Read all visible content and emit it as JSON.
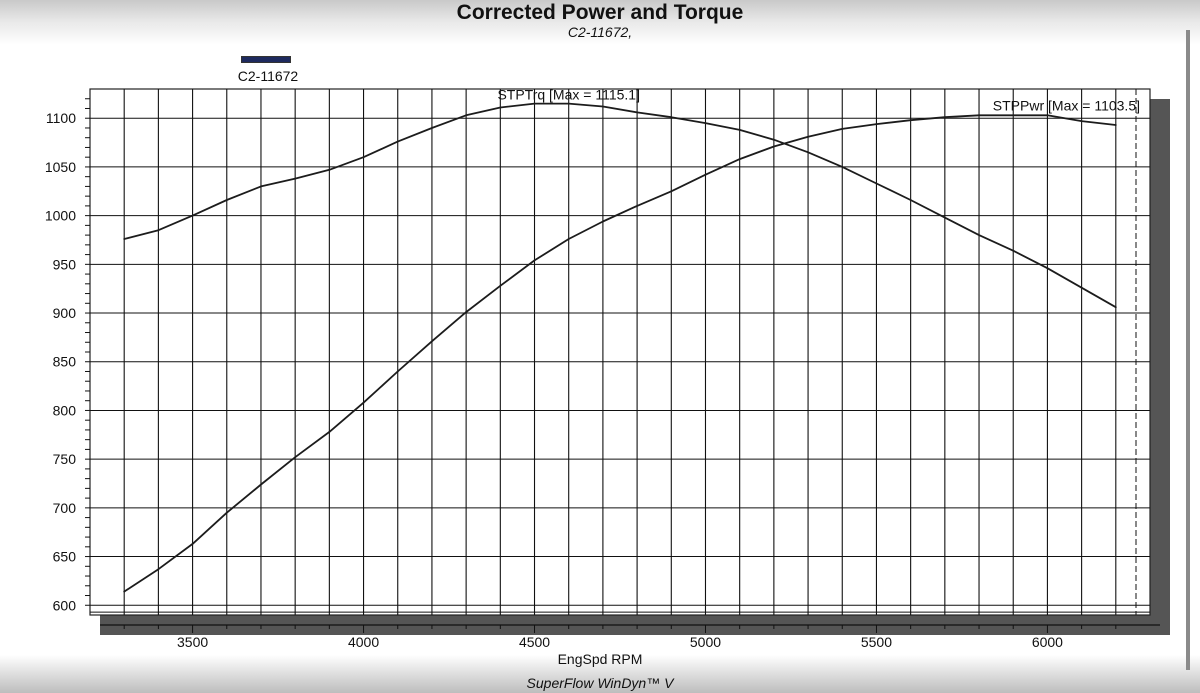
{
  "chart_data": {
    "type": "line",
    "title": "Corrected Power and Torque",
    "subtitle": "C2-11672,",
    "xlabel": "EngSpd RPM",
    "ylabel": "",
    "footer": "SuperFlow WinDyn™ V",
    "legend": {
      "label": "C2-11672",
      "color": "#1e2a5e",
      "position": "top-left"
    },
    "xlim": [
      3200,
      6300
    ],
    "ylim": [
      590,
      1130
    ],
    "x_ticks": [
      3500,
      4000,
      4500,
      5000,
      5500,
      6000
    ],
    "y_ticks": [
      600,
      650,
      700,
      750,
      800,
      850,
      900,
      950,
      1000,
      1050,
      1100
    ],
    "grid": true,
    "series": [
      {
        "name": "STPTrq",
        "label": "STPTrq [Max = 1115.1]",
        "color": "#1c1c1c",
        "x": [
          3300,
          3400,
          3500,
          3600,
          3700,
          3800,
          3900,
          4000,
          4100,
          4200,
          4300,
          4400,
          4500,
          4600,
          4700,
          4800,
          4900,
          5000,
          5100,
          5200,
          5300,
          5400,
          5500,
          5600,
          5700,
          5800,
          5900,
          6000,
          6100,
          6200
        ],
        "y": [
          976,
          985,
          1000,
          1016,
          1030,
          1038,
          1047,
          1060,
          1076,
          1090,
          1103,
          1111,
          1115,
          1115,
          1112,
          1106,
          1101,
          1095,
          1088,
          1078,
          1065,
          1050,
          1033,
          1016,
          998,
          980,
          964,
          946,
          926,
          906
        ]
      },
      {
        "name": "STPPwr",
        "label": "STPPwr [Max = 1103.5]",
        "color": "#1c1c1c",
        "x": [
          3300,
          3400,
          3500,
          3600,
          3700,
          3800,
          3900,
          4000,
          4100,
          4200,
          4300,
          4400,
          4500,
          4600,
          4700,
          4800,
          4900,
          5000,
          5100,
          5200,
          5300,
          5400,
          5500,
          5600,
          5700,
          5800,
          5900,
          6000,
          6100,
          6200
        ],
        "y": [
          614,
          637,
          663,
          695,
          724,
          752,
          778,
          808,
          840,
          871,
          901,
          928,
          954,
          976,
          994,
          1010,
          1025,
          1042,
          1058,
          1071,
          1081,
          1089,
          1094,
          1098,
          1101,
          1103,
          1103,
          1103,
          1097,
          1093
        ]
      }
    ],
    "series_labels_text": [
      "STPTrq [Max = 1115.1]",
      "STPPwr [Max = 1103.5]"
    ]
  }
}
